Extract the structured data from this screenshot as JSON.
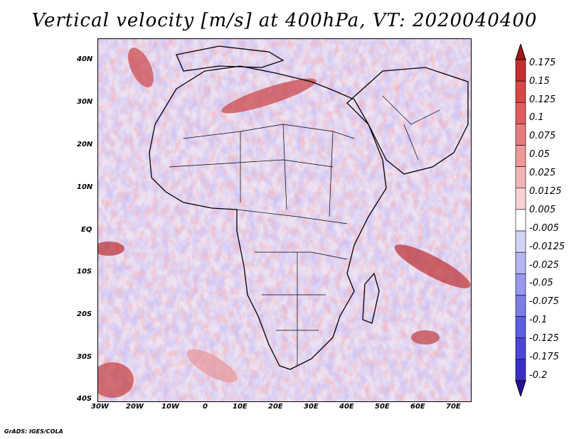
{
  "title": "Vertical velocity [m/s] at 400hPa, VT: 2020040400",
  "footer": "GrADS: IGES/COLA",
  "map": {
    "lon_range": [
      -30,
      75
    ],
    "lat_range": [
      -40,
      45
    ],
    "lon_ticks": [
      "30W",
      "20W",
      "10W",
      "0",
      "10E",
      "20E",
      "30E",
      "40E",
      "50E",
      "60E",
      "70E"
    ],
    "lat_ticks": [
      "40N",
      "30N",
      "20N",
      "10N",
      "EQ",
      "10S",
      "20S",
      "30S",
      "40S"
    ],
    "features": [
      "coastlines",
      "country-borders"
    ]
  },
  "colorbar": {
    "colors": [
      "#2a0e9a",
      "#3a2fc4",
      "#4a46d8",
      "#5e5ee2",
      "#7c7ce8",
      "#9898ee",
      "#b5b5f2",
      "#d3d3f8",
      "#ffffff",
      "#f8d3d3",
      "#f2b5b5",
      "#ee9898",
      "#e87c7c",
      "#e25e5e",
      "#d84646",
      "#c42f2f",
      "#a01818"
    ],
    "labels": [
      "0.175",
      "0.15",
      "0.125",
      "0.1",
      "0.075",
      "0.05",
      "0.025",
      "0.0125",
      "0.005",
      "-0.005",
      "-0.0125",
      "-0.025",
      "-0.05",
      "-0.075",
      "-0.1",
      "-0.125",
      "-0.175",
      "-0.2"
    ]
  }
}
